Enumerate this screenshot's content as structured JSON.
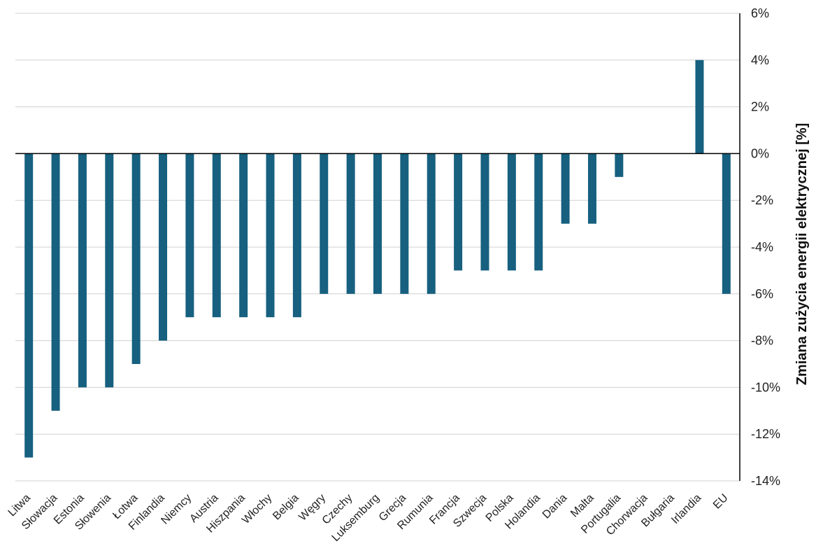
{
  "chart_data": {
    "type": "bar",
    "title": "",
    "xlabel": "",
    "ylabel": "Zmiana zużycia energii elektrycznej [%]",
    "ylim": [
      -14,
      6
    ],
    "y_ticks": [
      6,
      4,
      2,
      0,
      -2,
      -4,
      -6,
      -8,
      -10,
      -12,
      -14
    ],
    "y_tick_labels": [
      "6%",
      "4%",
      "2%",
      "0%",
      "-2%",
      "-4%",
      "-6%",
      "-8%",
      "-10%",
      "-12%",
      "-14%"
    ],
    "y_axis_position": "right",
    "grid": true,
    "categories": [
      "Litwa",
      "Słowacja",
      "Estonia",
      "Słowenia",
      "Łotwa",
      "Finlandia",
      "Niemcy",
      "Austria",
      "Hiszpania",
      "Włochy",
      "Belgia",
      "Węgry",
      "Czechy",
      "Luksemburg",
      "Grecja",
      "Rumunia",
      "Francja",
      "Szwecja",
      "Polska",
      "Holandia",
      "Dania",
      "Malta",
      "Portugalia",
      "Chorwacja",
      "Bułgaria",
      "Irlandia",
      "EU"
    ],
    "values": [
      -13,
      -11,
      -10,
      -10,
      -9,
      -8,
      -7,
      -7,
      -7,
      -7,
      -7,
      -6,
      -6,
      -6,
      -6,
      -6,
      -5,
      -5,
      -5,
      -5,
      -3,
      -3,
      -1,
      0,
      0,
      4,
      -6
    ],
    "bar_color": "#17607f"
  }
}
